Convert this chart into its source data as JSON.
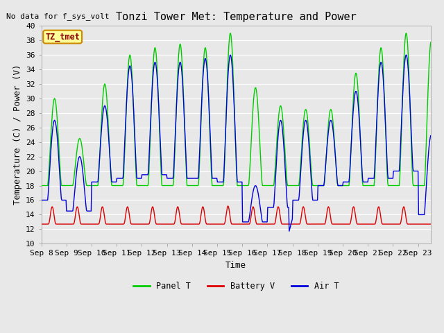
{
  "title": "Tonzi Tower Met: Temperature and Power",
  "no_data_label": "No data for f_sys_volt",
  "ylabel": "Temperature (C) / Power (V)",
  "xlabel": "Time",
  "ylim": [
    10,
    40
  ],
  "yticks": [
    10,
    12,
    14,
    16,
    18,
    20,
    22,
    24,
    26,
    28,
    30,
    32,
    34,
    36,
    38,
    40
  ],
  "x_labels": [
    "Sep 8",
    "Sep 9",
    "Sep 10",
    "Sep 11",
    "Sep 12",
    "Sep 13",
    "Sep 14",
    "Sep 15",
    "Sep 16",
    "Sep 17",
    "Sep 18",
    "Sep 19",
    "Sep 20",
    "Sep 21",
    "Sep 22",
    "Sep 23"
  ],
  "legend_entries": [
    "Panel T",
    "Battery V",
    "Air T"
  ],
  "panel_color": "#00cc00",
  "battery_color": "#dd0000",
  "air_color": "#0000dd",
  "bg_color": "#e8e8e8",
  "plot_bg_color": "#e8e8e8",
  "annotation_box_color": "#ffff99",
  "annotation_border_color": "#cc8800",
  "annotation_text": "TZ_tmet",
  "annotation_text_color": "#880000",
  "title_fontsize": 11,
  "label_fontsize": 9,
  "tick_fontsize": 8,
  "no_data_fontsize": 8
}
